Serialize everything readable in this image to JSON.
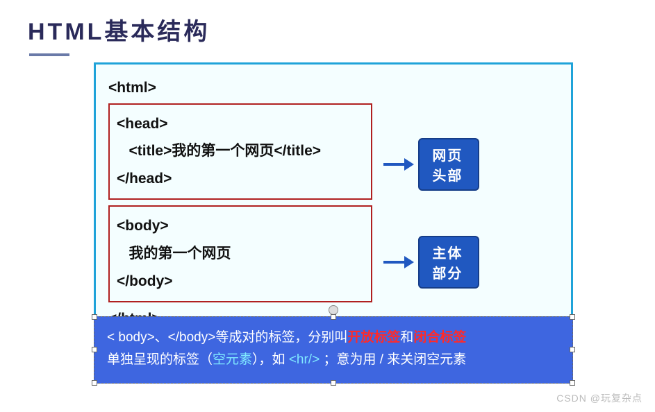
{
  "title": "HTML基本结构",
  "colors": {
    "title_text": "#2a2a5a",
    "title_underline": "#6a7aa8",
    "outer_border": "#1fa3d9",
    "outer_bg": "#f4feff",
    "inner_border": "#b02020",
    "arrow": "#2058c0",
    "badge_bg": "#2058c0",
    "badge_border": "#163d88",
    "badge_text": "#ffffff",
    "note_bg": "#3e66e0",
    "note_text": "#ffffff",
    "highlight_red": "#ff2a2a",
    "highlight_cyan": "#7fe8ff",
    "watermark": "#bbbbbb"
  },
  "code": {
    "open_html": "<html>",
    "head_block": {
      "open": "<head>",
      "title_line": "   <title>我的第一个网页</title>",
      "close": "</head>",
      "label": "网页头部"
    },
    "body_block": {
      "open": "<body>",
      "content_line": "   我的第一个网页",
      "close": "</body>",
      "label": "主体部分"
    },
    "close_html": "</html>"
  },
  "note": {
    "line1_a": "< body>、</body>等成对的标签，分别叫",
    "line1_b": "开放标签",
    "line1_c": "和",
    "line1_d": "闭合标签",
    "line2_a": "单独呈现的标签（",
    "line2_b": "空元素",
    "line2_c": "），如 ",
    "line2_d": "<hr/>",
    "line2_e": " ；意为用  /  来关闭空元素"
  },
  "watermark": "CSDN @玩复杂点"
}
